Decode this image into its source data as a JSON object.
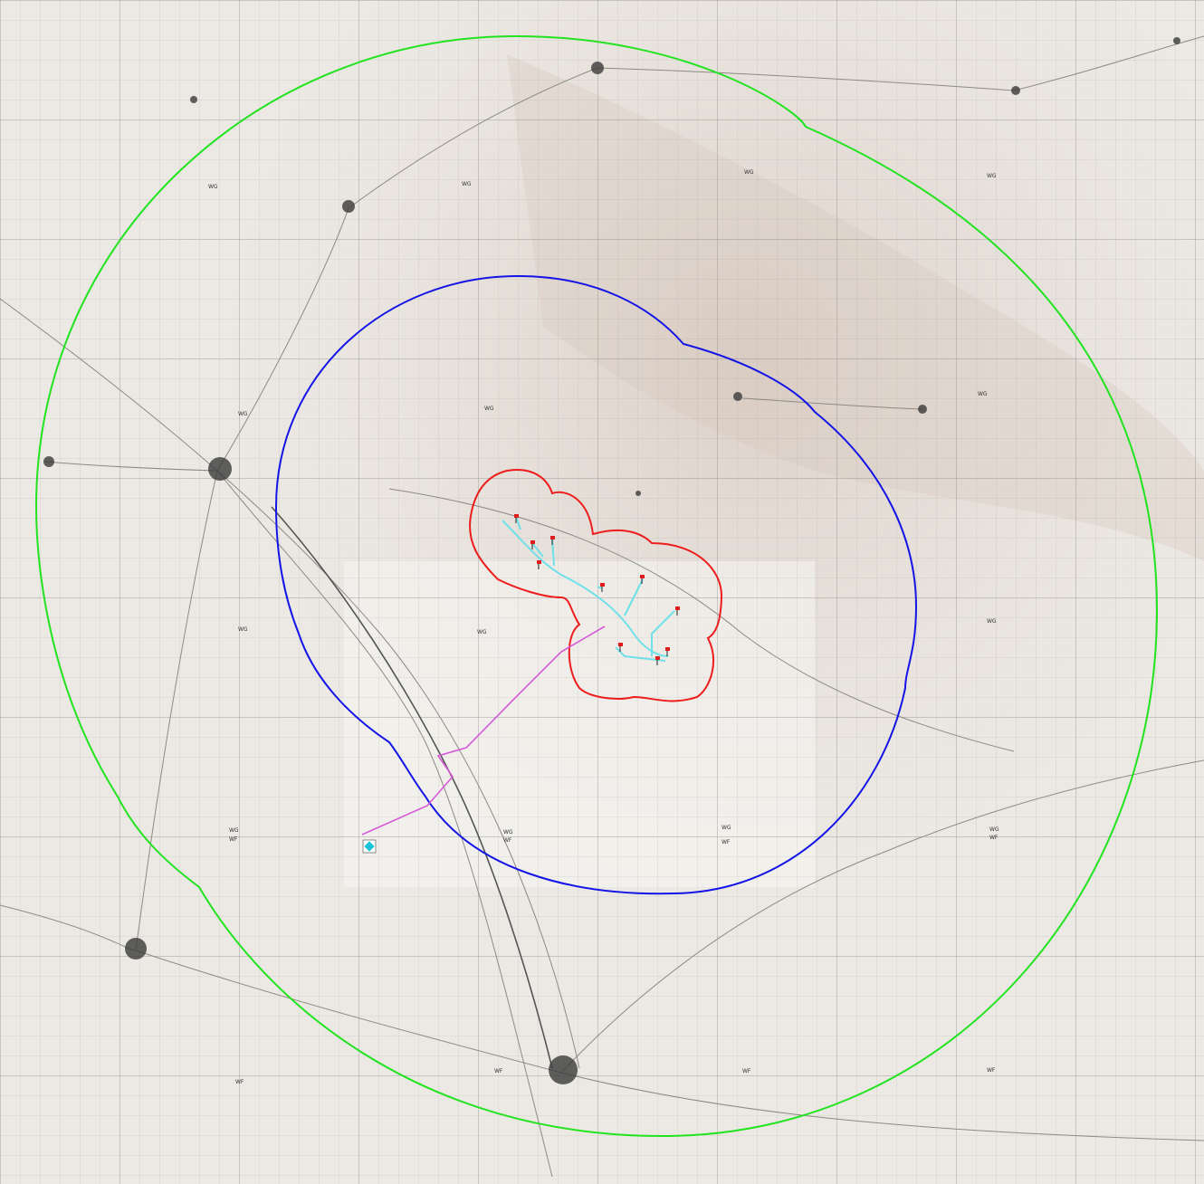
{
  "map": {
    "buffer_colors": {
      "outer": "#22e31f",
      "middle": "#1414e6",
      "inner": "#ee1d1d",
      "collector": "#6fe0e8",
      "cable_route": "#d65ad9",
      "substation": "#17c3d6"
    },
    "grid_labels": [
      {
        "text": "WG"
      },
      {
        "text": "WG"
      },
      {
        "text": "WG"
      },
      {
        "text": "WG"
      },
      {
        "text": "WG"
      },
      {
        "text": "WG"
      },
      {
        "text": "WG"
      },
      {
        "text": "WG"
      },
      {
        "text": "WG"
      },
      {
        "text": "WG"
      },
      {
        "text": "WG"
      },
      {
        "text": "WF"
      },
      {
        "text": "WG"
      },
      {
        "text": "WF"
      },
      {
        "text": "WG"
      },
      {
        "text": "WF"
      },
      {
        "text": "WG"
      },
      {
        "text": "WF"
      },
      {
        "text": "WF"
      },
      {
        "text": "WF"
      },
      {
        "text": "WF"
      },
      {
        "text": "WF"
      }
    ],
    "turbine_count": 10,
    "icons": {
      "turbine": "turbine-icon",
      "substation": "substation-icon",
      "town": "town-icon"
    }
  }
}
